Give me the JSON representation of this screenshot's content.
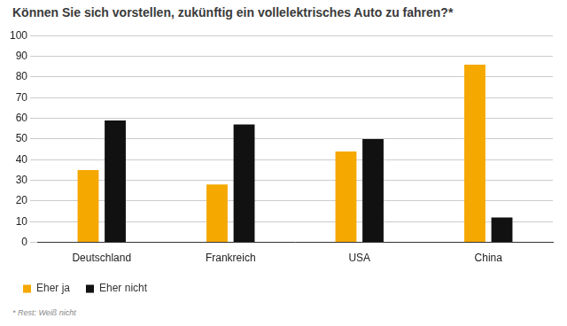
{
  "chart_data": {
    "type": "bar",
    "title": "Können Sie sich vorstellen, zukünftig ein vollelektrisches Auto zu fahren?*",
    "categories": [
      "Deutschland",
      "Frankreich",
      "USA",
      "China"
    ],
    "series": [
      {
        "name": "Eher ja",
        "color": "#f5a800",
        "values": [
          35,
          28,
          44,
          86
        ]
      },
      {
        "name": "Eher nicht",
        "color": "#111111",
        "values": [
          59,
          57,
          50,
          12
        ]
      }
    ],
    "ylim": [
      0,
      100
    ],
    "yticks": [
      0,
      10,
      20,
      30,
      40,
      50,
      60,
      70,
      80,
      90,
      100
    ],
    "grid": true,
    "legend": "bottom-left",
    "annotations": [
      "* Rest: Weiß nicht"
    ]
  }
}
